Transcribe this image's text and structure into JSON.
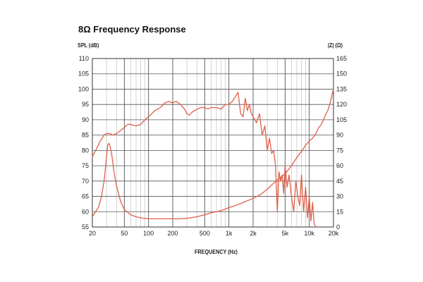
{
  "chart_data": {
    "type": "line",
    "title": "8Ω Frequency Response",
    "xlabel": "FREQUENCY (Hz)",
    "ylabel": "SPL (dB)",
    "y2label": "|Z| (Ω)",
    "xscale": "log",
    "xlim": [
      20,
      20000
    ],
    "ylim": [
      55,
      110
    ],
    "y2lim": [
      0,
      165
    ],
    "grid": true,
    "line_color": "#e0604a",
    "x_ticks": [
      {
        "v": 20,
        "label": "20"
      },
      {
        "v": 50,
        "label": "50"
      },
      {
        "v": 100,
        "label": "100"
      },
      {
        "v": 200,
        "label": "200"
      },
      {
        "v": 500,
        "label": "500"
      },
      {
        "v": 1000,
        "label": "1k"
      },
      {
        "v": 2000,
        "label": "2k"
      },
      {
        "v": 5000,
        "label": "5k"
      },
      {
        "v": 10000,
        "label": "10k"
      },
      {
        "v": 20000,
        "label": "20k"
      }
    ],
    "y_ticks": [
      "55",
      "60",
      "65",
      "70",
      "75",
      "80",
      "85",
      "90",
      "95",
      "100",
      "105",
      "110"
    ],
    "y2_ticks": [
      "0",
      "15",
      "30",
      "45",
      "60",
      "75",
      "90",
      "105",
      "120",
      "135",
      "150",
      "165"
    ],
    "series": [
      {
        "x": [
          20,
          22,
          25,
          28,
          30,
          33,
          36,
          40,
          45,
          50,
          55,
          60,
          65,
          70,
          80,
          90,
          100,
          110,
          120,
          140,
          160,
          180,
          200,
          220,
          250,
          280,
          300,
          320,
          350,
          400,
          450,
          500,
          550,
          600,
          700,
          800,
          900,
          1000,
          1100,
          1200,
          1300,
          1400,
          1500,
          1600,
          1700,
          1800,
          1900,
          2000,
          2200,
          2400,
          2600,
          2800,
          3000,
          3200,
          3400,
          3600,
          3800,
          4000,
          4200,
          4400,
          4600,
          4800,
          5000,
          5300,
          5600,
          6000,
          6400,
          6800,
          7200,
          7600,
          8000,
          8500,
          9000,
          9500,
          10000,
          10500,
          11000,
          11500,
          12000
        ],
        "y": [
          78,
          80,
          83,
          85,
          85.5,
          85.5,
          85,
          85.5,
          86.5,
          87.5,
          88.5,
          88.5,
          88.2,
          88,
          88.5,
          90,
          91,
          92,
          93,
          94,
          95.5,
          96,
          95.5,
          96,
          95,
          93.5,
          92,
          91.5,
          92.5,
          93.5,
          94,
          94,
          93.5,
          94,
          94,
          93.5,
          95,
          95,
          96,
          97.5,
          99,
          92,
          91,
          97,
          93,
          95,
          92,
          91,
          89,
          92,
          85,
          88,
          80,
          84,
          79,
          80,
          75,
          60,
          73,
          70,
          72,
          66,
          75,
          68,
          72,
          65,
          60,
          70,
          65,
          62,
          72,
          60,
          68,
          58,
          65,
          57,
          63,
          56,
          55
        ]
      },
      {
        "x": [
          20,
          22,
          24,
          26,
          28,
          30,
          31,
          32,
          33,
          35,
          37,
          40,
          45,
          50,
          60,
          70,
          80,
          100,
          120,
          150,
          200,
          250,
          300,
          400,
          500,
          600,
          700,
          800,
          1000,
          1200,
          1500,
          2000,
          2500,
          3000,
          3500,
          4000,
          5000,
          6000,
          7000,
          8000,
          9000,
          10000,
          11000,
          12000,
          13000,
          14000,
          15000,
          16000,
          17000,
          18000,
          19000,
          20000
        ],
        "y": [
          10,
          15,
          20,
          30,
          45,
          68,
          80,
          82,
          80,
          70,
          55,
          40,
          25,
          17,
          12,
          10,
          9,
          8,
          8,
          8,
          8,
          8,
          8.5,
          10,
          12,
          14,
          15,
          16,
          19,
          21,
          24,
          28,
          32,
          37,
          42,
          46,
          52,
          60,
          68,
          74,
          80,
          84,
          87,
          91,
          97,
          100,
          105,
          110,
          114,
          120,
          128,
          135
        ]
      }
    ]
  }
}
